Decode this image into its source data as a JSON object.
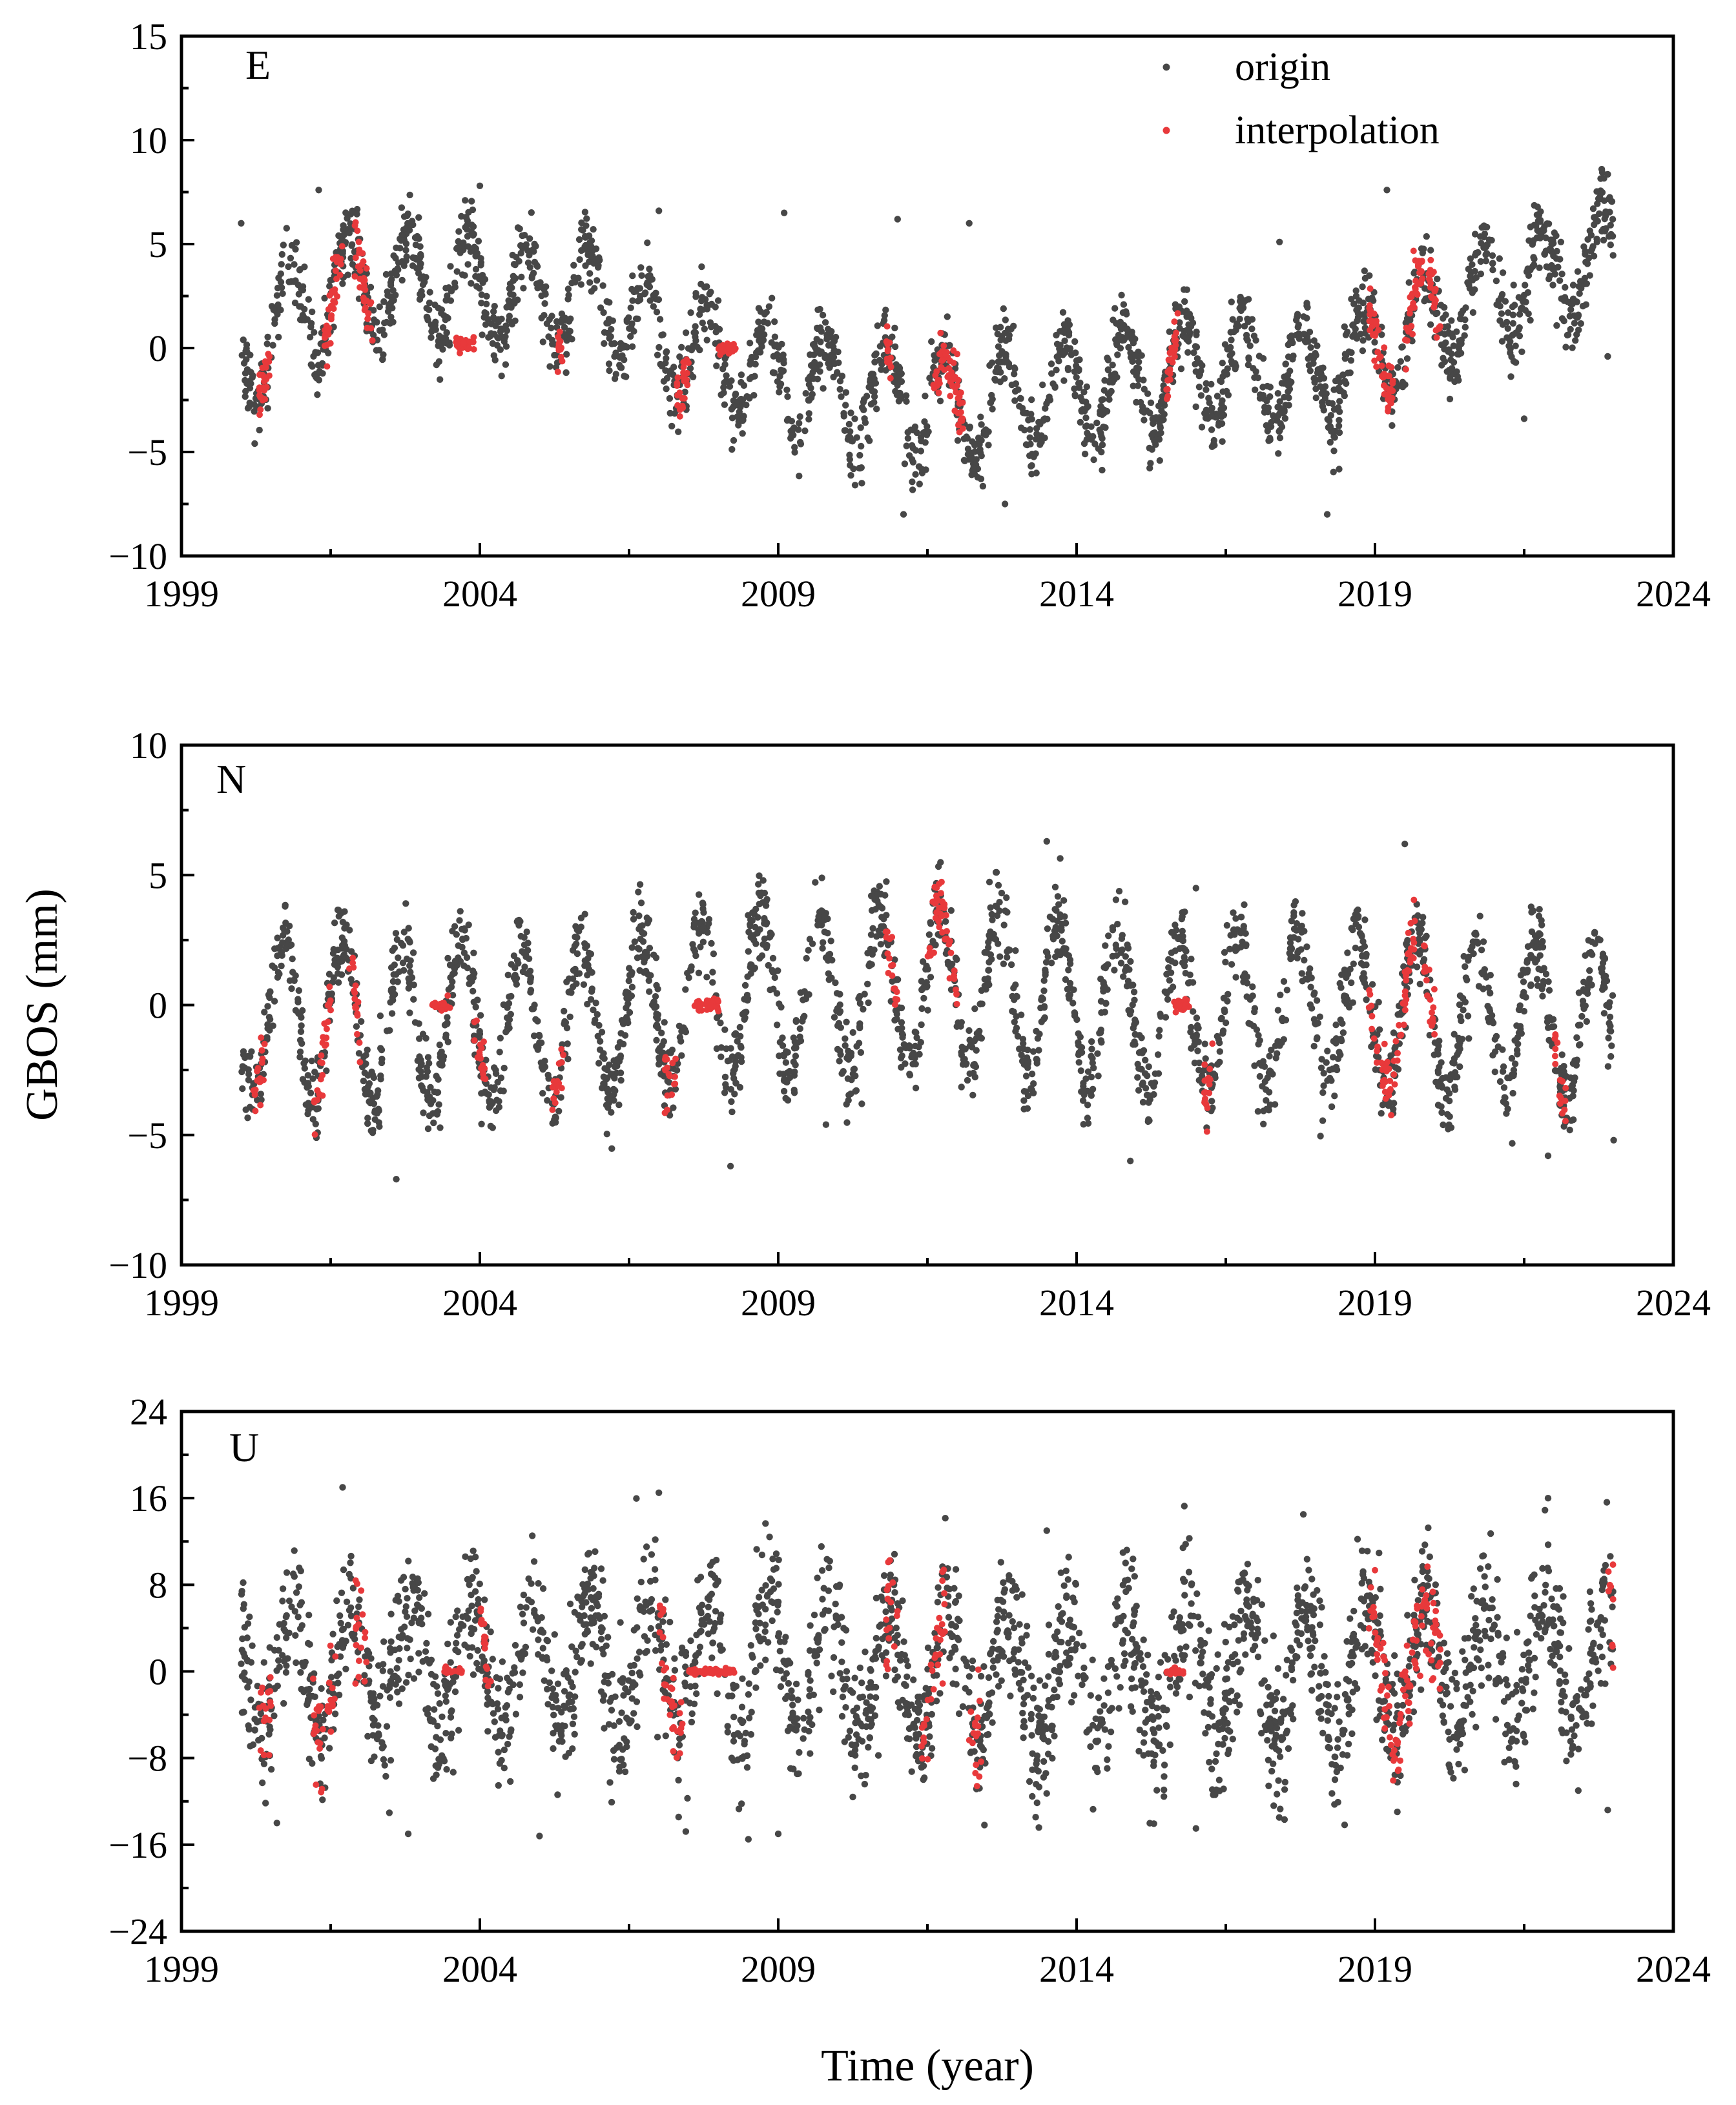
{
  "figure": {
    "ylabel": "GBOS (mm)",
    "xlabel": "Time (year)"
  },
  "legend": {
    "items": [
      {
        "label": "origin",
        "color": "#474747"
      },
      {
        "label": "interpolation",
        "color": "#e8393b"
      }
    ]
  },
  "chart_data": [
    {
      "type": "scatter",
      "panel": "E",
      "title": "E",
      "xlim": [
        1999,
        2024
      ],
      "ylim": [
        -10,
        15
      ],
      "xticks": [
        1999,
        2004,
        2009,
        2014,
        2019,
        2024
      ],
      "xtick_labels": [
        "1999",
        "2004",
        "2009",
        "2014",
        "2019",
        "2024"
      ],
      "yticks": [
        -10,
        -5,
        0,
        5,
        10,
        15
      ],
      "ytick_labels": [
        "−10",
        "−5",
        "0",
        "5",
        "10",
        "15"
      ],
      "series": [
        {
          "name": "origin",
          "color": "#474747",
          "x_range": [
            2000.0,
            2023.0
          ],
          "trend_x": [
            2000.0,
            2001.0,
            2002.0,
            2003.0,
            2004.0,
            2005.0,
            2006.0,
            2007.0,
            2008.0,
            2009.0,
            2010.0,
            2011.0,
            2012.0,
            2013.0,
            2014.0,
            2015.0,
            2016.0,
            2017.0,
            2018.0,
            2019.0,
            2020.0,
            2021.0,
            2022.0,
            2023.0
          ],
          "trend_y": [
            -0.5,
            2.0,
            3.0,
            3.0,
            3.0,
            2.5,
            2.5,
            0.5,
            -0.5,
            -1.5,
            -2.0,
            -2.5,
            -3.0,
            -2.5,
            -2.0,
            -1.5,
            -1.0,
            -1.0,
            -1.5,
            0.0,
            1.5,
            3.0,
            3.5,
            4.5
          ],
          "amplitude": 2.5,
          "noise": 0.9,
          "phase": 0.55,
          "n_points": 2400,
          "outliers": [
            [
              2000.0,
              6.0
            ],
            [
              2001.3,
              7.6
            ],
            [
              2004.0,
              7.8
            ],
            [
              2007.0,
              6.6
            ],
            [
              2008.4,
              -3.5
            ],
            [
              2009.1,
              6.5
            ],
            [
              2010.4,
              -6.5
            ],
            [
              2011.0,
              6.2
            ],
            [
              2011.1,
              -8.0
            ],
            [
              2012.2,
              6.0
            ],
            [
              2012.8,
              -7.5
            ],
            [
              2016.1,
              -3.8
            ],
            [
              2017.4,
              5.1
            ],
            [
              2018.2,
              -8.0
            ],
            [
              2019.2,
              7.6
            ],
            [
              2021.5,
              -3.4
            ],
            [
              2022.8,
              8.6
            ],
            [
              2022.9,
              -0.4
            ]
          ]
        },
        {
          "name": "interpolation",
          "color": "#e8393b",
          "gaps": [
            {
              "start": 2000.3,
              "end": 2000.5,
              "mode": "cycle"
            },
            {
              "start": 2001.4,
              "end": 2001.7,
              "mode": "cycle"
            },
            {
              "start": 2001.9,
              "end": 2002.2,
              "mode": "cycle"
            },
            {
              "start": 2003.6,
              "end": 2003.9,
              "mode": "flat",
              "value": 0.2
            },
            {
              "start": 2005.3,
              "end": 2005.4,
              "mode": "cycle"
            },
            {
              "start": 2007.3,
              "end": 2007.5,
              "mode": "cycle"
            },
            {
              "start": 2008.0,
              "end": 2008.3,
              "mode": "flat",
              "value": 0.0
            },
            {
              "start": 2010.8,
              "end": 2010.9,
              "mode": "cycle"
            },
            {
              "start": 2011.6,
              "end": 2012.1,
              "mode": "cycle"
            },
            {
              "start": 2015.5,
              "end": 2015.7,
              "mode": "cycle"
            },
            {
              "start": 2018.9,
              "end": 2019.3,
              "mode": "cycle"
            },
            {
              "start": 2019.5,
              "end": 2019.8,
              "mode": "cycle"
            },
            {
              "start": 2019.9,
              "end": 2020.1,
              "mode": "cycle"
            }
          ],
          "n_points": 420
        }
      ]
    },
    {
      "type": "scatter",
      "panel": "N",
      "title": "N",
      "xlim": [
        1999,
        2024
      ],
      "ylim": [
        -10,
        10
      ],
      "xticks": [
        1999,
        2004,
        2009,
        2014,
        2019,
        2024
      ],
      "xtick_labels": [
        "1999",
        "2004",
        "2009",
        "2014",
        "2019",
        "2024"
      ],
      "yticks": [
        -10,
        -5,
        0,
        5,
        10
      ],
      "ytick_labels": [
        "−10",
        "−5",
        "0",
        "5",
        "10"
      ],
      "series": [
        {
          "name": "origin",
          "color": "#474747",
          "x_range": [
            2000.0,
            2023.0
          ],
          "trend_x": [
            2000.0,
            2005.0,
            2008.0,
            2012.0,
            2015.0,
            2019.0,
            2023.0
          ],
          "trend_y": [
            -0.5,
            -0.8,
            0.2,
            0.8,
            -0.3,
            -0.3,
            -0.8
          ],
          "amplitude": 3.0,
          "noise": 0.8,
          "phase": 0.45,
          "n_points": 2400,
          "outliers": [
            [
              2002.6,
              -6.7
            ],
            [
              2008.2,
              -6.2
            ],
            [
              2009.8,
              -4.6
            ],
            [
              2013.5,
              6.3
            ],
            [
              2014.9,
              -6.0
            ],
            [
              2016.0,
              4.5
            ],
            [
              2017.2,
              -2.8
            ],
            [
              2019.5,
              6.2
            ],
            [
              2021.9,
              -5.8
            ],
            [
              2023.0,
              -5.2
            ],
            [
              2010.4,
              -3.8
            ]
          ]
        },
        {
          "name": "interpolation",
          "color": "#e8393b",
          "gaps": [
            {
              "start": 2000.2,
              "end": 2000.4,
              "mode": "cycle"
            },
            {
              "start": 2001.2,
              "end": 2001.5,
              "mode": "cycle"
            },
            {
              "start": 2001.8,
              "end": 2002.0,
              "mode": "cycle"
            },
            {
              "start": 2003.2,
              "end": 2003.5,
              "mode": "flat",
              "value": 0.0
            },
            {
              "start": 2003.9,
              "end": 2004.1,
              "mode": "cycle"
            },
            {
              "start": 2005.2,
              "end": 2005.4,
              "mode": "cycle"
            },
            {
              "start": 2007.1,
              "end": 2007.3,
              "mode": "cycle"
            },
            {
              "start": 2007.6,
              "end": 2008.0,
              "mode": "flat",
              "value": 0.0
            },
            {
              "start": 2010.8,
              "end": 2011.0,
              "mode": "cycle"
            },
            {
              "start": 2011.5,
              "end": 2012.0,
              "mode": "cycle"
            },
            {
              "start": 2015.6,
              "end": 2015.9,
              "mode": "flat",
              "value": 0.0
            },
            {
              "start": 2016.1,
              "end": 2016.3,
              "mode": "cycle"
            },
            {
              "start": 2018.9,
              "end": 2019.7,
              "mode": "cycle"
            },
            {
              "start": 2019.8,
              "end": 2020.0,
              "mode": "cycle"
            },
            {
              "start": 2022.0,
              "end": 2022.2,
              "mode": "cycle"
            }
          ],
          "n_points": 380
        }
      ]
    },
    {
      "type": "scatter",
      "panel": "U",
      "title": "U",
      "xlim": [
        1999,
        2024
      ],
      "ylim": [
        -24,
        24
      ],
      "xticks": [
        1999,
        2004,
        2009,
        2014,
        2019,
        2024
      ],
      "xtick_labels": [
        "1999",
        "2004",
        "2009",
        "2014",
        "2019",
        "2024"
      ],
      "yticks": [
        -24,
        -16,
        -8,
        0,
        8,
        16,
        24
      ],
      "ytick_labels": [
        "−24",
        "−16",
        "−8",
        "0",
        "8",
        "16",
        "24"
      ],
      "series": [
        {
          "name": "origin",
          "color": "#474747",
          "x_range": [
            2000.0,
            2023.0
          ],
          "trend_x": [
            2000.0,
            2006.0,
            2010.0,
            2014.0,
            2019.0,
            2023.0
          ],
          "trend_y": [
            0.0,
            1.0,
            0.5,
            -1.0,
            0.0,
            0.5
          ],
          "amplitude": 6.0,
          "noise": 3.2,
          "phase": 0.6,
          "n_points": 2600,
          "outliers": [
            [
              2000.6,
              -14.0
            ],
            [
              2001.7,
              17.0
            ],
            [
              2002.8,
              -15.0
            ],
            [
              2005.0,
              -15.2
            ],
            [
              2007.0,
              16.5
            ],
            [
              2008.5,
              -15.5
            ],
            [
              2009.0,
              -15.0
            ],
            [
              2013.5,
              13.0
            ],
            [
              2016.0,
              -14.5
            ],
            [
              2017.8,
              14.5
            ],
            [
              2021.9,
              16.0
            ],
            [
              2022.9,
              -12.8
            ]
          ]
        },
        {
          "name": "interpolation",
          "color": "#e8393b",
          "gaps": [
            {
              "start": 2000.3,
              "end": 2000.5,
              "mode": "cycle"
            },
            {
              "start": 2001.2,
              "end": 2001.6,
              "mode": "cycle"
            },
            {
              "start": 2001.9,
              "end": 2002.1,
              "mode": "cycle"
            },
            {
              "start": 2003.4,
              "end": 2003.7,
              "mode": "flat",
              "value": 0.0
            },
            {
              "start": 2004.0,
              "end": 2004.2,
              "mode": "cycle"
            },
            {
              "start": 2007.0,
              "end": 2007.4,
              "mode": "cycle"
            },
            {
              "start": 2007.5,
              "end": 2008.3,
              "mode": "flat",
              "value": 0.0
            },
            {
              "start": 2010.8,
              "end": 2011.0,
              "mode": "cycle"
            },
            {
              "start": 2011.4,
              "end": 2011.8,
              "mode": "cycle"
            },
            {
              "start": 2012.2,
              "end": 2012.4,
              "mode": "cycle"
            },
            {
              "start": 2015.5,
              "end": 2015.8,
              "mode": "flat",
              "value": 0.0
            },
            {
              "start": 2018.9,
              "end": 2019.4,
              "mode": "cycle"
            },
            {
              "start": 2019.4,
              "end": 2020.1,
              "mode": "cycle"
            },
            {
              "start": 2022.9,
              "end": 2023.0,
              "mode": "cycle"
            }
          ],
          "n_points": 420
        }
      ]
    }
  ]
}
